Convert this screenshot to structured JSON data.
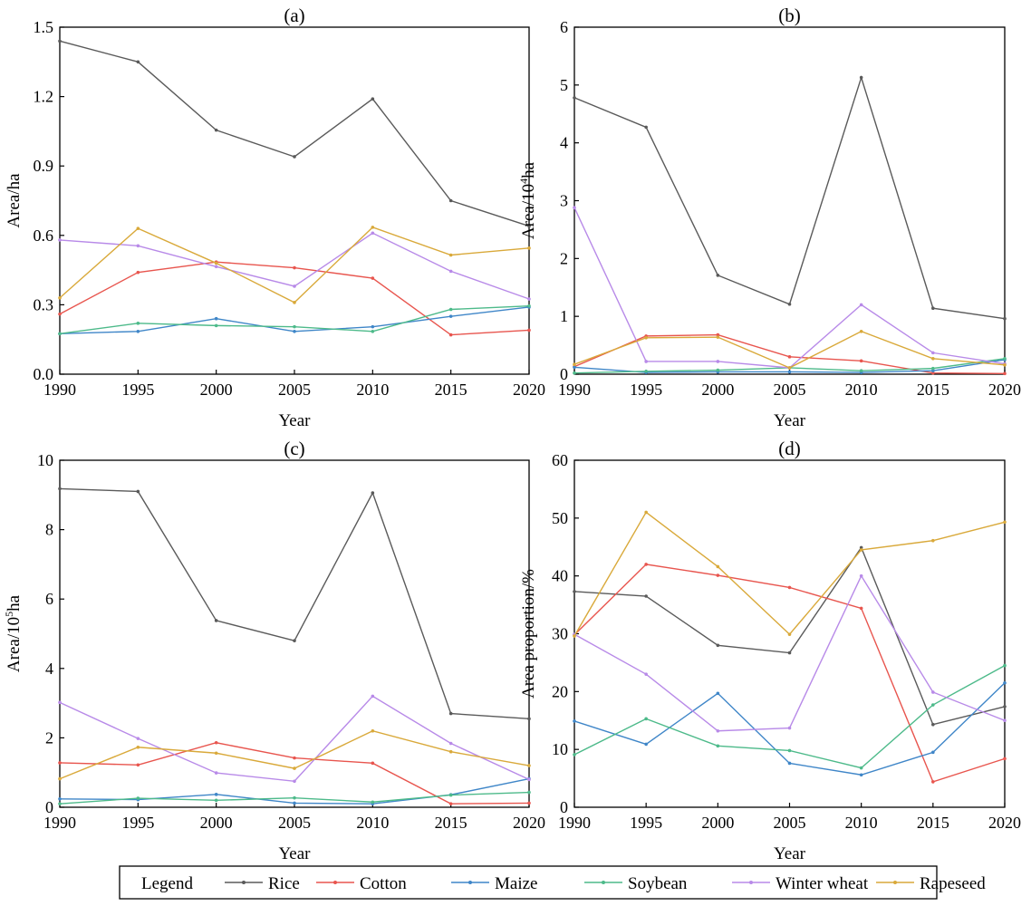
{
  "legend": {
    "title": "Legend",
    "items": [
      {
        "name": "Rice",
        "color": "#5a5a5a"
      },
      {
        "name": "Cotton",
        "color": "#e8554e"
      },
      {
        "name": "Maize",
        "color": "#3f86c8"
      },
      {
        "name": "Soybean",
        "color": "#4dba8a"
      },
      {
        "name": "Winter wheat",
        "color": "#b88ae8"
      },
      {
        "name": "Rapeseed",
        "color": "#d9a93a"
      }
    ]
  },
  "chart_data": [
    {
      "type": "line",
      "title": "(a)",
      "xlabel": "Year",
      "ylabel": "Area/ha",
      "x": [
        1990,
        1995,
        2000,
        2005,
        2010,
        2015,
        2020
      ],
      "xticks": [
        "1990",
        "1995",
        "2000",
        "2005",
        "2010",
        "2015",
        "2020"
      ],
      "ylim": [
        0,
        1.5
      ],
      "yticks": [
        "0.0",
        "0.3",
        "0.6",
        "0.9",
        "1.2",
        "1.5"
      ],
      "series": [
        {
          "name": "Rice",
          "values": [
            1.44,
            1.35,
            1.055,
            0.94,
            1.19,
            0.75,
            0.64
          ]
        },
        {
          "name": "Cotton",
          "values": [
            0.26,
            0.44,
            0.485,
            0.46,
            0.415,
            0.17,
            0.19
          ]
        },
        {
          "name": "Maize",
          "values": [
            0.175,
            0.185,
            0.24,
            0.185,
            0.205,
            0.25,
            0.29
          ]
        },
        {
          "name": "Soybean",
          "values": [
            0.175,
            0.22,
            0.21,
            0.205,
            0.185,
            0.28,
            0.295
          ]
        },
        {
          "name": "Winter wheat",
          "values": [
            0.58,
            0.555,
            0.465,
            0.38,
            0.61,
            0.445,
            0.325
          ]
        },
        {
          "name": "Rapeseed",
          "values": [
            0.33,
            0.63,
            0.48,
            0.31,
            0.635,
            0.515,
            0.545
          ]
        }
      ]
    },
    {
      "type": "line",
      "title": "(b)",
      "xlabel": "Year",
      "ylabel": "Area/10",
      "ylabel_sup": "4",
      "ylabel_suffix": "ha",
      "x": [
        1990,
        1995,
        2000,
        2005,
        2010,
        2015,
        2020
      ],
      "xticks": [
        "1990",
        "1995",
        "2000",
        "2005",
        "2010",
        "2015",
        "2020"
      ],
      "ylim": [
        0,
        6
      ],
      "yticks": [
        "0",
        "1",
        "2",
        "3",
        "4",
        "5",
        "6"
      ],
      "series": [
        {
          "name": "Rice",
          "values": [
            4.78,
            4.27,
            1.71,
            1.21,
            5.13,
            1.14,
            0.96
          ]
        },
        {
          "name": "Cotton",
          "values": [
            0.13,
            0.66,
            0.68,
            0.3,
            0.23,
            0.02,
            0.01
          ]
        },
        {
          "name": "Maize",
          "values": [
            0.12,
            0.03,
            0.04,
            0.04,
            0.03,
            0.06,
            0.25
          ]
        },
        {
          "name": "Soybean",
          "values": [
            0.02,
            0.05,
            0.07,
            0.11,
            0.06,
            0.1,
            0.27
          ]
        },
        {
          "name": "Winter wheat",
          "values": [
            2.88,
            0.22,
            0.22,
            0.11,
            1.2,
            0.37,
            0.18
          ]
        },
        {
          "name": "Rapeseed",
          "values": [
            0.17,
            0.63,
            0.64,
            0.11,
            0.74,
            0.27,
            0.16
          ]
        }
      ]
    },
    {
      "type": "line",
      "title": "(c)",
      "xlabel": "Year",
      "ylabel": "Area/10",
      "ylabel_sup": "5",
      "ylabel_suffix": "ha",
      "x": [
        1990,
        1995,
        2000,
        2005,
        2010,
        2015,
        2020
      ],
      "xticks": [
        "1990",
        "1995",
        "2000",
        "2005",
        "2010",
        "2015",
        "2020"
      ],
      "ylim": [
        0,
        10
      ],
      "yticks": [
        "0",
        "2",
        "4",
        "6",
        "8",
        "10"
      ],
      "series": [
        {
          "name": "Rice",
          "values": [
            9.18,
            9.1,
            5.38,
            4.8,
            9.06,
            2.7,
            2.55
          ]
        },
        {
          "name": "Cotton",
          "values": [
            1.28,
            1.22,
            1.86,
            1.42,
            1.27,
            0.1,
            0.12
          ]
        },
        {
          "name": "Maize",
          "values": [
            0.24,
            0.22,
            0.37,
            0.12,
            0.1,
            0.36,
            0.82
          ]
        },
        {
          "name": "Soybean",
          "values": [
            0.1,
            0.26,
            0.2,
            0.27,
            0.15,
            0.35,
            0.43
          ]
        },
        {
          "name": "Winter wheat",
          "values": [
            3.02,
            1.98,
            0.99,
            0.75,
            3.2,
            1.84,
            0.8
          ]
        },
        {
          "name": "Rapeseed",
          "values": [
            0.82,
            1.73,
            1.56,
            1.12,
            2.2,
            1.6,
            1.2
          ]
        }
      ]
    },
    {
      "type": "line",
      "title": "(d)",
      "xlabel": "Year",
      "ylabel": "Area proportion/%",
      "x": [
        1990,
        1995,
        2000,
        2005,
        2010,
        2015,
        2020
      ],
      "xticks": [
        "1990",
        "1995",
        "2000",
        "2005",
        "2010",
        "2015",
        "2020"
      ],
      "ylim": [
        0,
        60
      ],
      "yticks": [
        "0",
        "10",
        "20",
        "30",
        "40",
        "50",
        "60"
      ],
      "series": [
        {
          "name": "Rice",
          "values": [
            37.3,
            36.5,
            28,
            26.7,
            44.9,
            14.3,
            17.4
          ]
        },
        {
          "name": "Cotton",
          "values": [
            29.8,
            42,
            40.1,
            38,
            34.4,
            4.4,
            8.4
          ]
        },
        {
          "name": "Maize",
          "values": [
            14.9,
            10.9,
            19.7,
            7.6,
            5.6,
            9.5,
            21.5
          ]
        },
        {
          "name": "Soybean",
          "values": [
            9.1,
            15.3,
            10.6,
            9.8,
            6.8,
            17.7,
            24.5
          ]
        },
        {
          "name": "Winter wheat",
          "values": [
            29.9,
            23,
            13.2,
            13.7,
            40,
            19.9,
            15
          ]
        },
        {
          "name": "Rapeseed",
          "values": [
            29.6,
            51,
            41.6,
            29.9,
            44.5,
            46.1,
            49.3
          ]
        }
      ]
    }
  ]
}
